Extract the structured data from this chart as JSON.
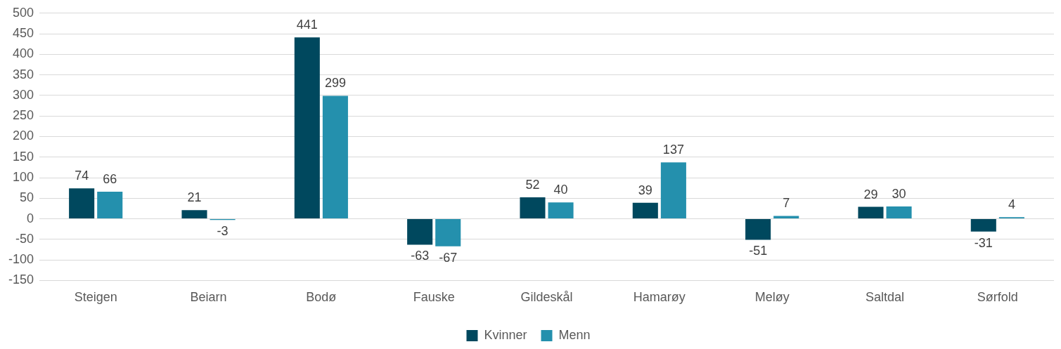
{
  "chart_data": {
    "type": "bar",
    "categories": [
      "Steigen",
      "Beiarn",
      "Bodø",
      "Fauske",
      "Gildeskål",
      "Hamarøy",
      "Meløy",
      "Saltdal",
      "Sørfold"
    ],
    "series": [
      {
        "name": "Kvinner",
        "color": "#00485e",
        "values": [
          74,
          21,
          441,
          -63,
          52,
          39,
          -51,
          29,
          -31
        ]
      },
      {
        "name": "Menn",
        "color": "#2490ad",
        "values": [
          66,
          -3,
          299,
          -67,
          40,
          137,
          7,
          30,
          4
        ]
      }
    ],
    "ylim": [
      -150,
      500
    ],
    "yticks": [
      -150,
      -100,
      -50,
      0,
      50,
      100,
      150,
      200,
      250,
      300,
      350,
      400,
      450,
      500
    ],
    "grid": "y",
    "legend": "bottom",
    "data_labels": true
  }
}
